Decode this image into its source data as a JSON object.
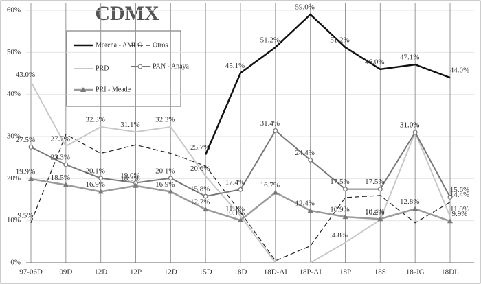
{
  "chart_data": {
    "type": "line",
    "title": "CDMX",
    "categories": [
      "97-06D",
      "09D",
      "12D",
      "12P",
      "12D",
      "15D",
      "18D",
      "18D-AI",
      "18P-AI",
      "18P",
      "18S",
      "18-JG",
      "18DL"
    ],
    "ylim": [
      0,
      60
    ],
    "yticks": [
      {
        "value": 0,
        "label": "0%"
      },
      {
        "value": 10,
        "label": "10%"
      },
      {
        "value": 20,
        "label": "20%"
      },
      {
        "value": 30,
        "label": "30%"
      },
      {
        "value": 40,
        "label": "40%"
      },
      {
        "value": 50,
        "label": "50%"
      },
      {
        "value": 60,
        "label": "60%"
      }
    ],
    "grid": true,
    "series": [
      {
        "name": "Morena - AMLO",
        "color": "#111111",
        "width": 2.5,
        "dash": false,
        "marker": "none",
        "values": [
          null,
          null,
          null,
          null,
          null,
          25.7,
          45.1,
          51.2,
          59.0,
          51.2,
          46.0,
          47.1,
          44.0
        ],
        "value_labels": [
          null,
          null,
          null,
          null,
          null,
          "25.7%",
          "45.1%",
          "51.2%",
          "59.0%",
          "51.2%",
          "46.0%",
          "47.1%",
          "44.0%"
        ]
      },
      {
        "name": "Otros",
        "color": "#222222",
        "width": 1.2,
        "dash": true,
        "marker": "none",
        "values": [
          9.5,
          30.5,
          26,
          28,
          26,
          23,
          12,
          0.5,
          4,
          15.5,
          16,
          9.5,
          14.4
        ],
        "value_labels": [
          "9.5%",
          null,
          null,
          null,
          null,
          null,
          null,
          null,
          null,
          null,
          null,
          null,
          "14.4%"
        ]
      },
      {
        "name": "PRD",
        "color": "#c8c8c8",
        "width": 2,
        "dash": false,
        "marker": "none",
        "values": [
          43.0,
          27.7,
          32.3,
          31.1,
          32.3,
          20.6,
          11.1,
          0,
          0,
          4.8,
          10.2,
          31.0,
          11.0
        ],
        "value_labels": [
          "43.0%",
          "27.7%",
          "32.3%",
          "31.1%",
          "32.3%",
          "20.6%",
          "11.1%",
          null,
          null,
          "4.8%",
          "10.2%",
          "31.0%",
          "11.0%"
        ]
      },
      {
        "name": "PAN - Anaya",
        "color": "#777777",
        "width": 2,
        "dash": false,
        "marker": "circle",
        "values": [
          27.5,
          23.3,
          20.1,
          19.0,
          20.1,
          15.8,
          17.4,
          31.4,
          24.4,
          17.5,
          17.5,
          31.0,
          15.6
        ],
        "value_labels": [
          "27.5%",
          "23.3%",
          "20.1%",
          "19.0%",
          "20.1%",
          "15.8%",
          "17.4%",
          "31.4%",
          "24.4%",
          "17.5%",
          "17.5%",
          "31.0%",
          "15.6%"
        ]
      },
      {
        "name": "PRI - Meade",
        "color": "#9a9a9a",
        "width": 2.5,
        "dash": false,
        "marker": "triangle",
        "values": [
          19.9,
          18.5,
          16.9,
          18.3,
          16.9,
          12.7,
          10.1,
          16.7,
          12.4,
          10.9,
          10.4,
          12.8,
          9.9
        ],
        "value_labels": [
          "19.9%",
          "18.5%",
          "16.9%",
          "18.3%",
          "16.9%",
          "12.7%",
          "10.1%",
          "16.7%",
          "12.4%",
          "10.9%",
          "10.4%",
          "12.8%",
          "9.9%"
        ]
      }
    ]
  }
}
